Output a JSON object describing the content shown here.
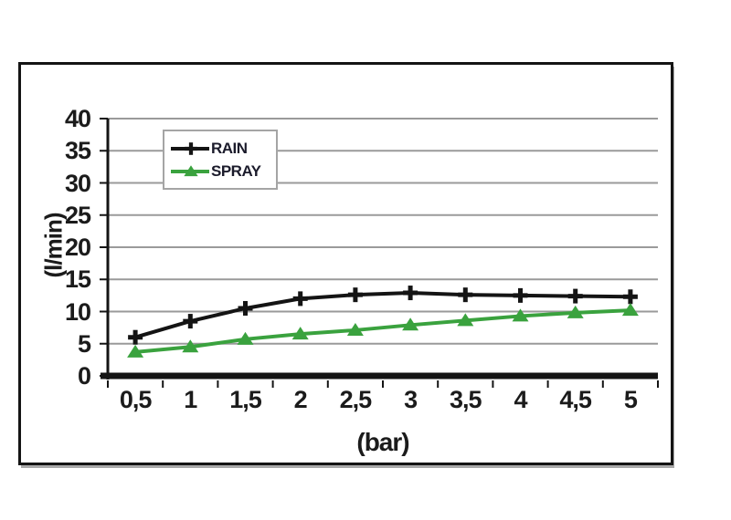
{
  "chart_data": {
    "type": "line",
    "title": "",
    "xlabel": "(bar)",
    "ylabel": "(l/min)",
    "x": [
      0.5,
      1,
      1.5,
      2,
      2.5,
      3,
      3.5,
      4,
      4.5,
      5
    ],
    "x_tick_labels": [
      "0,5",
      "1",
      "1,5",
      "2",
      "2,5",
      "3",
      "3,5",
      "4",
      "4,5",
      "5"
    ],
    "ylim": [
      0,
      40
    ],
    "ytick_step": 5,
    "ytick_labels": [
      "0",
      "5",
      "10",
      "15",
      "20",
      "25",
      "30",
      "35",
      "40"
    ],
    "grid": "horizontal-gray",
    "legend_position": "top-left-inside",
    "series": [
      {
        "name": "RAIN",
        "color": "#141414",
        "marker": "plus",
        "values": [
          6,
          8.5,
          10.5,
          12,
          12.6,
          12.9,
          12.6,
          12.5,
          12.4,
          12.3
        ]
      },
      {
        "name": "SPRAY",
        "color": "#3aa23e",
        "marker": "triangle",
        "values": [
          3.7,
          4.5,
          5.7,
          6.5,
          7.1,
          7.9,
          8.6,
          9.3,
          9.8,
          10.2
        ]
      }
    ]
  },
  "colors": {
    "grid": "#9a9a9a",
    "axis": "#141414",
    "text": "#1b1b1b",
    "frame_border": "#141414",
    "legend_border": "#a5a5a5",
    "background": "#ffffff"
  }
}
